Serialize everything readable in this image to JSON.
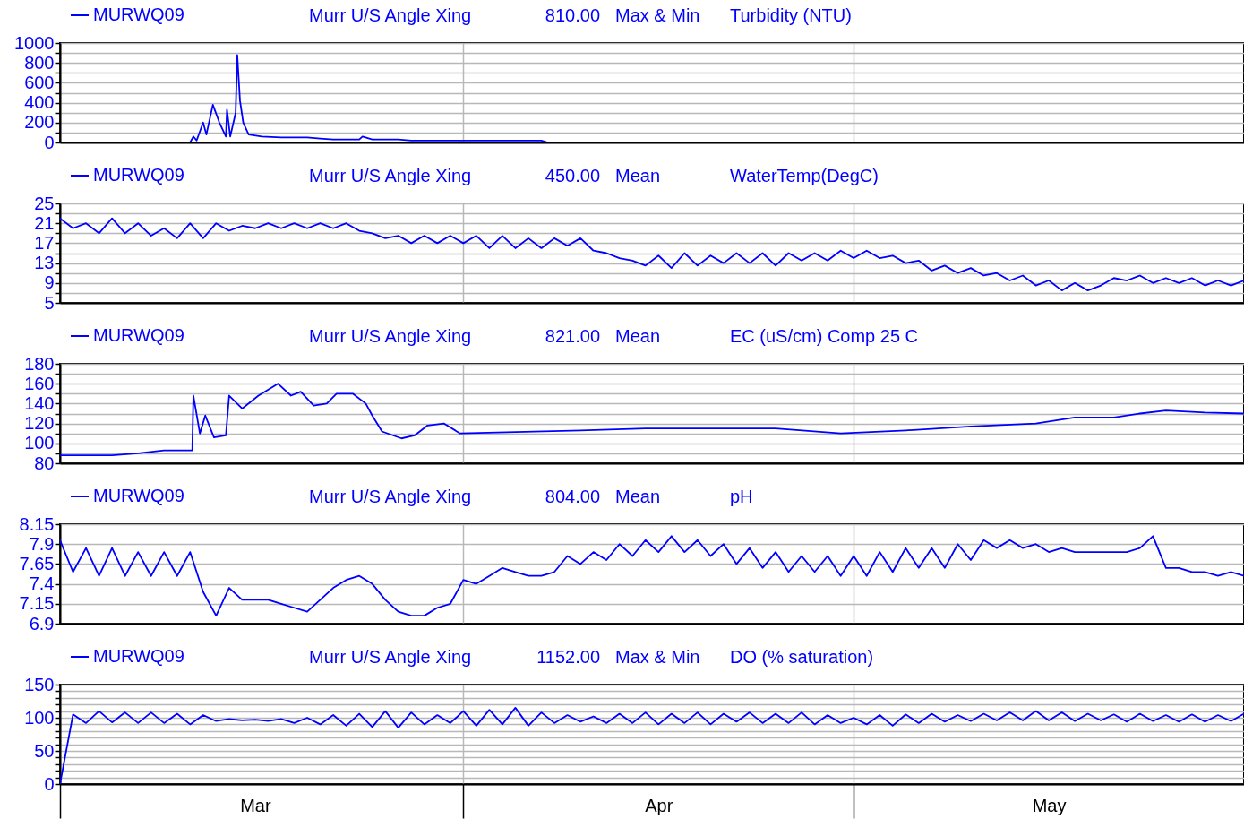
{
  "chart_data": [
    {
      "type": "line",
      "annotations": [
        "Murr U/S Angle Xing",
        "810.00",
        "Max & Min",
        "Turbidity (NTU)"
      ],
      "x": [
        "--03-01",
        "--03-11",
        "--03-11T06:00",
        "--03-11T12:00",
        "--03-12",
        "--03-12T06:00",
        "--03-12T18:00",
        "--03-13T06:00",
        "--03-13T18:00",
        "--03-13T20:00",
        "--03-14T02:00",
        "--03-14T12:00",
        "--03-14T15:00",
        "--03-14T20:00",
        "--03-15T02:00",
        "--03-15T12:00",
        "--03-16T12:00",
        "--03-18",
        "--03-20",
        "--03-21",
        "--03-22",
        "--03-24",
        "--03-24T06:00",
        "--03-25",
        "--03-27",
        "--03-28",
        "--04-01",
        "--04-07",
        "--04-07T12:00",
        "--05-24",
        "--05-31"
      ],
      "series": [
        {
          "name": "MURWQ09",
          "color": "#0000ff",
          "values": [
            0,
            0,
            60,
            20,
            200,
            80,
            380,
            200,
            60,
            330,
            60,
            300,
            880,
            420,
            200,
            80,
            60,
            50,
            50,
            40,
            30,
            30,
            60,
            30,
            30,
            20,
            20,
            20,
            0,
            0,
            0
          ]
        }
      ],
      "xlim": [
        "--03-01",
        "--05-31"
      ],
      "xticks": [
        {
          "value": "--03-01",
          "label": null
        },
        {
          "value": "--03-16",
          "label": "Mar"
        },
        {
          "value": "--04-01",
          "label": null
        },
        {
          "value": "--04-16",
          "label": "Apr"
        },
        {
          "value": "--05-01",
          "label": null
        },
        {
          "value": "--05-16",
          "label": "May"
        }
      ],
      "ylim": [
        0,
        1000
      ],
      "yticks": [
        0,
        {
          "value": 100,
          "label": null
        },
        200,
        {
          "value": 300,
          "label": null
        },
        400,
        {
          "value": 500,
          "label": null
        },
        600,
        {
          "value": 700,
          "label": null
        },
        800,
        {
          "value": 900,
          "label": null
        },
        1000
      ],
      "grid": true,
      "legend": "top left",
      "tick_labels": "y"
    },
    {
      "type": "line",
      "annotations": [
        "Murr U/S Angle Xing",
        "450.00",
        "Mean",
        "WaterTemp(DegC)"
      ],
      "x": [
        "--03-01",
        "--03-02",
        "--03-03",
        "--03-04",
        "--03-05",
        "--03-06",
        "--03-07",
        "--03-08",
        "--03-09",
        "--03-10",
        "--03-11",
        "--03-12",
        "--03-13",
        "--03-14",
        "--03-15",
        "--03-16",
        "--03-17",
        "--03-18",
        "--03-19",
        "--03-20",
        "--03-21",
        "--03-22",
        "--03-23",
        "--03-24",
        "--03-25",
        "--03-26",
        "--03-27",
        "--03-28",
        "--03-29",
        "--03-30",
        "--03-31",
        "--04-01",
        "--04-02",
        "--04-03",
        "--04-04",
        "--04-05",
        "--04-06",
        "--04-07",
        "--04-08",
        "--04-09",
        "--04-10",
        "--04-11",
        "--04-12",
        "--04-13",
        "--04-14",
        "--04-15",
        "--04-16",
        "--04-17",
        "--04-18",
        "--04-19",
        "--04-20",
        "--04-21",
        "--04-22",
        "--04-23",
        "--04-24",
        "--04-25",
        "--04-26",
        "--04-27",
        "--04-28",
        "--04-29",
        "--04-30",
        "--05-01",
        "--05-02",
        "--05-03",
        "--05-04",
        "--05-05",
        "--05-06",
        "--05-07",
        "--05-08",
        "--05-09",
        "--05-10",
        "--05-11",
        "--05-12",
        "--05-13",
        "--05-14",
        "--05-15",
        "--05-16",
        "--05-17",
        "--05-18",
        "--05-19",
        "--05-20",
        "--05-21",
        "--05-22",
        "--05-23",
        "--05-24",
        "--05-25",
        "--05-26",
        "--05-27",
        "--05-28",
        "--05-29",
        "--05-30",
        "--05-31"
      ],
      "series": [
        {
          "name": "MURWQ09",
          "color": "#0000ff",
          "values": [
            22,
            20,
            21,
            19,
            22,
            19,
            21,
            18.5,
            20,
            18,
            21,
            18,
            21,
            19.5,
            20.5,
            20,
            21,
            20,
            21,
            20,
            21,
            20,
            21,
            19.5,
            19,
            18,
            18.5,
            17,
            18.5,
            17,
            18.5,
            17,
            18.5,
            16,
            18.5,
            16,
            18,
            16,
            18,
            16.5,
            18,
            15.5,
            15,
            14,
            13.5,
            12.5,
            14.5,
            12,
            15,
            12.5,
            14.5,
            13,
            15,
            13,
            15,
            12.5,
            15,
            13.5,
            15,
            13.5,
            15.5,
            14,
            15.5,
            14,
            14.5,
            13,
            13.5,
            11.5,
            12.5,
            11,
            12,
            10.5,
            11,
            9.5,
            10.5,
            8.5,
            9.5,
            7.5,
            9,
            7.5,
            8.5,
            10,
            9.5,
            10.5,
            9,
            10,
            9,
            10,
            8.5,
            9.5,
            8.5,
            9.5
          ]
        }
      ],
      "xlim": [
        "--03-01",
        "--05-31"
      ],
      "xticks": [
        {
          "value": "--03-01",
          "label": null
        },
        {
          "value": "--03-16",
          "label": "Mar"
        },
        {
          "value": "--04-01",
          "label": null
        },
        {
          "value": "--04-16",
          "label": "Apr"
        },
        {
          "value": "--05-01",
          "label": null
        },
        {
          "value": "--05-16",
          "label": "May"
        }
      ],
      "ylim": [
        5,
        25
      ],
      "yticks": [
        5,
        {
          "value": 7,
          "label": null
        },
        9,
        {
          "value": 11,
          "label": null
        },
        13,
        {
          "value": 15,
          "label": null
        },
        17,
        {
          "value": 19,
          "label": null
        },
        21,
        {
          "value": 23,
          "label": null
        },
        25
      ],
      "grid": true,
      "legend": "top left",
      "tick_labels": "y"
    },
    {
      "type": "line",
      "annotations": [
        "Murr U/S Angle Xing",
        "821.00",
        "Mean",
        "EC (uS/cm) Comp 25 C"
      ],
      "x": [
        "--03-01",
        "--03-05",
        "--03-07",
        "--03-09",
        "--03-11T04:00",
        "--03-11T06:00",
        "--03-11T18:00",
        "--03-12T04:00",
        "--03-12T20:00",
        "--03-13T18:00",
        "--03-14",
        "--03-15",
        "--03-16T06:00",
        "--03-17T18:00",
        "--03-18T18:00",
        "--03-19T12:00",
        "--03-20T12:00",
        "--03-21T12:00",
        "--03-22T06:00",
        "--03-23T12:00",
        "--03-24T12:00",
        "--03-25",
        "--03-25T18:00",
        "--03-27T06:00",
        "--03-28T06:00",
        "--03-29T06:00",
        "--03-30T12:00",
        "--03-31T18:00",
        "--04-10",
        "--04-15",
        "--04-25",
        "--04-30",
        "--05-05",
        "--05-10",
        "--05-15",
        "--05-18",
        "--05-21",
        "--05-23",
        "--05-25",
        "--05-28",
        "--05-31"
      ],
      "series": [
        {
          "name": "MURWQ09",
          "color": "#0000ff",
          "values": [
            88,
            88,
            90,
            93,
            93,
            148,
            110,
            128,
            106,
            108,
            148,
            135,
            148,
            160,
            148,
            152,
            138,
            140,
            150,
            150,
            140,
            128,
            112,
            105,
            108,
            118,
            120,
            110,
            113,
            115,
            115,
            110,
            113,
            117,
            120,
            126,
            126,
            130,
            133,
            131,
            130
          ]
        }
      ],
      "xlim": [
        "--03-01",
        "--05-31"
      ],
      "xticks": [
        {
          "value": "--03-01",
          "label": null
        },
        {
          "value": "--03-16",
          "label": "Mar"
        },
        {
          "value": "--04-01",
          "label": null
        },
        {
          "value": "--04-16",
          "label": "Apr"
        },
        {
          "value": "--05-01",
          "label": null
        },
        {
          "value": "--05-16",
          "label": "May"
        }
      ],
      "ylim": [
        80,
        180
      ],
      "yticks": [
        80,
        {
          "value": 90,
          "label": null
        },
        100,
        {
          "value": 110,
          "label": null
        },
        120,
        {
          "value": 130,
          "label": null
        },
        140,
        {
          "value": 150,
          "label": null
        },
        160,
        {
          "value": 170,
          "label": null
        },
        180
      ],
      "grid": true,
      "legend": "top left",
      "tick_labels": "y"
    },
    {
      "type": "line",
      "annotations": [
        "Murr U/S Angle Xing",
        "804.00",
        "Mean",
        "pH"
      ],
      "x": [
        "--03-01",
        "--03-02",
        "--03-03",
        "--03-04",
        "--03-05",
        "--03-06",
        "--03-07",
        "--03-08",
        "--03-09",
        "--03-10",
        "--03-11",
        "--03-12",
        "--03-13",
        "--03-14",
        "--03-15",
        "--03-16",
        "--03-17",
        "--03-18",
        "--03-19",
        "--03-20",
        "--03-21",
        "--03-22",
        "--03-23",
        "--03-24",
        "--03-25",
        "--03-26",
        "--03-27",
        "--03-28",
        "--03-29",
        "--03-30",
        "--03-31",
        "--04-01",
        "--04-02",
        "--04-03",
        "--04-04",
        "--04-05",
        "--04-06",
        "--04-07",
        "--04-08",
        "--04-09",
        "--04-10",
        "--04-11",
        "--04-12",
        "--04-13",
        "--04-14",
        "--04-15",
        "--04-16",
        "--04-17",
        "--04-18",
        "--04-19",
        "--04-20",
        "--04-21",
        "--04-22",
        "--04-23",
        "--04-24",
        "--04-25",
        "--04-26",
        "--04-27",
        "--04-28",
        "--04-29",
        "--04-30",
        "--05-01",
        "--05-02",
        "--05-03",
        "--05-04",
        "--05-05",
        "--05-06",
        "--05-07",
        "--05-08",
        "--05-09",
        "--05-10",
        "--05-11",
        "--05-12",
        "--05-13",
        "--05-14",
        "--05-15",
        "--05-16",
        "--05-17",
        "--05-18",
        "--05-19",
        "--05-20",
        "--05-21",
        "--05-22",
        "--05-23",
        "--05-24",
        "--05-25",
        "--05-26",
        "--05-27",
        "--05-28",
        "--05-29",
        "--05-30",
        "--05-31"
      ],
      "series": [
        {
          "name": "MURWQ09",
          "color": "#0000ff",
          "values": [
            7.95,
            7.55,
            7.85,
            7.5,
            7.85,
            7.5,
            7.8,
            7.5,
            7.8,
            7.5,
            7.8,
            7.3,
            7.0,
            7.35,
            7.2,
            7.2,
            7.2,
            7.15,
            7.1,
            7.05,
            7.2,
            7.35,
            7.45,
            7.5,
            7.4,
            7.2,
            7.05,
            7.0,
            7.0,
            7.1,
            7.15,
            7.45,
            7.4,
            7.5,
            7.6,
            7.55,
            7.5,
            7.5,
            7.55,
            7.75,
            7.65,
            7.8,
            7.7,
            7.9,
            7.75,
            7.95,
            7.8,
            8.0,
            7.8,
            7.95,
            7.75,
            7.9,
            7.65,
            7.85,
            7.6,
            7.8,
            7.55,
            7.75,
            7.55,
            7.75,
            7.5,
            7.75,
            7.5,
            7.8,
            7.55,
            7.85,
            7.6,
            7.85,
            7.6,
            7.9,
            7.7,
            7.95,
            7.85,
            7.95,
            7.85,
            7.9,
            7.8,
            7.85,
            7.8,
            7.8,
            7.8,
            7.8,
            7.8,
            7.85,
            8.0,
            7.6,
            7.6,
            7.55,
            7.55,
            7.5,
            7.55,
            7.5
          ]
        }
      ],
      "xlim": [
        "--03-01",
        "--05-31"
      ],
      "xticks": [
        {
          "value": "--03-01",
          "label": null
        },
        {
          "value": "--03-16",
          "label": "Mar"
        },
        {
          "value": "--04-01",
          "label": null
        },
        {
          "value": "--04-16",
          "label": "Apr"
        },
        {
          "value": "--05-01",
          "label": null
        },
        {
          "value": "--05-16",
          "label": "May"
        }
      ],
      "ylim": [
        6.9,
        8.15
      ],
      "yticks": [
        6.9,
        7.15,
        7.4,
        7.65,
        7.9,
        8.15
      ],
      "grid": true,
      "legend": "top left",
      "tick_labels": "y"
    },
    {
      "type": "line",
      "annotations": [
        "Murr U/S Angle Xing",
        "1152.00",
        "Max & Min",
        "DO (% saturation)"
      ],
      "x": [
        "--03-01",
        "--03-02",
        "--03-03",
        "--03-04",
        "--03-05",
        "--03-06",
        "--03-07",
        "--03-08",
        "--03-09",
        "--03-10",
        "--03-11",
        "--03-12",
        "--03-13",
        "--03-14",
        "--03-15",
        "--03-16",
        "--03-17",
        "--03-18",
        "--03-19",
        "--03-20",
        "--03-21",
        "--03-22",
        "--03-23",
        "--03-24",
        "--03-25",
        "--03-26",
        "--03-27",
        "--03-28",
        "--03-29",
        "--03-30",
        "--03-31",
        "--04-01",
        "--04-02",
        "--04-03",
        "--04-04",
        "--04-05",
        "--04-06",
        "--04-07",
        "--04-08",
        "--04-09",
        "--04-10",
        "--04-11",
        "--04-12",
        "--04-13",
        "--04-14",
        "--04-15",
        "--04-16",
        "--04-17",
        "--04-18",
        "--04-19",
        "--04-20",
        "--04-21",
        "--04-22",
        "--04-23",
        "--04-24",
        "--04-25",
        "--04-26",
        "--04-27",
        "--04-28",
        "--04-29",
        "--04-30",
        "--05-01",
        "--05-02",
        "--05-03",
        "--05-04",
        "--05-05",
        "--05-06",
        "--05-07",
        "--05-08",
        "--05-09",
        "--05-10",
        "--05-11",
        "--05-12",
        "--05-13",
        "--05-14",
        "--05-15",
        "--05-16",
        "--05-17",
        "--05-18",
        "--05-19",
        "--05-20",
        "--05-21",
        "--05-22",
        "--05-23",
        "--05-24",
        "--05-25",
        "--05-26",
        "--05-27",
        "--05-28",
        "--05-29",
        "--05-30",
        "--05-31"
      ],
      "series": [
        {
          "name": "MURWQ09",
          "color": "#0000ff",
          "values": [
            0,
            105,
            92,
            110,
            93,
            108,
            92,
            108,
            92,
            106,
            90,
            104,
            95,
            98,
            96,
            97,
            95,
            98,
            92,
            100,
            90,
            104,
            88,
            106,
            86,
            110,
            85,
            108,
            90,
            104,
            92,
            110,
            88,
            112,
            90,
            115,
            88,
            108,
            92,
            104,
            94,
            102,
            92,
            106,
            92,
            108,
            90,
            106,
            92,
            108,
            90,
            106,
            94,
            108,
            92,
            106,
            92,
            108,
            90,
            104,
            92,
            100,
            90,
            104,
            88,
            105,
            92,
            106,
            94,
            104,
            95,
            106,
            96,
            108,
            96,
            110,
            96,
            108,
            95,
            106,
            96,
            105,
            94,
            106,
            95,
            104,
            94,
            105,
            94,
            104,
            95,
            106
          ]
        }
      ],
      "xlim": [
        "--03-01",
        "--05-31"
      ],
      "xticks": [
        {
          "value": "--03-01",
          "label": null
        },
        {
          "value": "--03-16",
          "label": "Mar"
        },
        {
          "value": "--04-01",
          "label": null
        },
        {
          "value": "--04-16",
          "label": "Apr"
        },
        {
          "value": "--05-01",
          "label": null
        },
        {
          "value": "--05-16",
          "label": "May"
        }
      ],
      "ylim": [
        0,
        150
      ],
      "yticks": [
        0,
        {
          "value": 10,
          "label": null
        },
        {
          "value": 20,
          "label": null
        },
        {
          "value": 30,
          "label": null
        },
        {
          "value": 40,
          "label": null
        },
        50,
        {
          "value": 60,
          "label": null
        },
        {
          "value": 70,
          "label": null
        },
        {
          "value": 80,
          "label": null
        },
        {
          "value": 90,
          "label": null
        },
        100,
        {
          "value": 110,
          "label": null
        },
        {
          "value": 120,
          "label": null
        },
        {
          "value": 130,
          "label": null
        },
        {
          "value": 140,
          "label": null
        },
        150
      ],
      "grid": true,
      "legend": "top left"
    }
  ]
}
